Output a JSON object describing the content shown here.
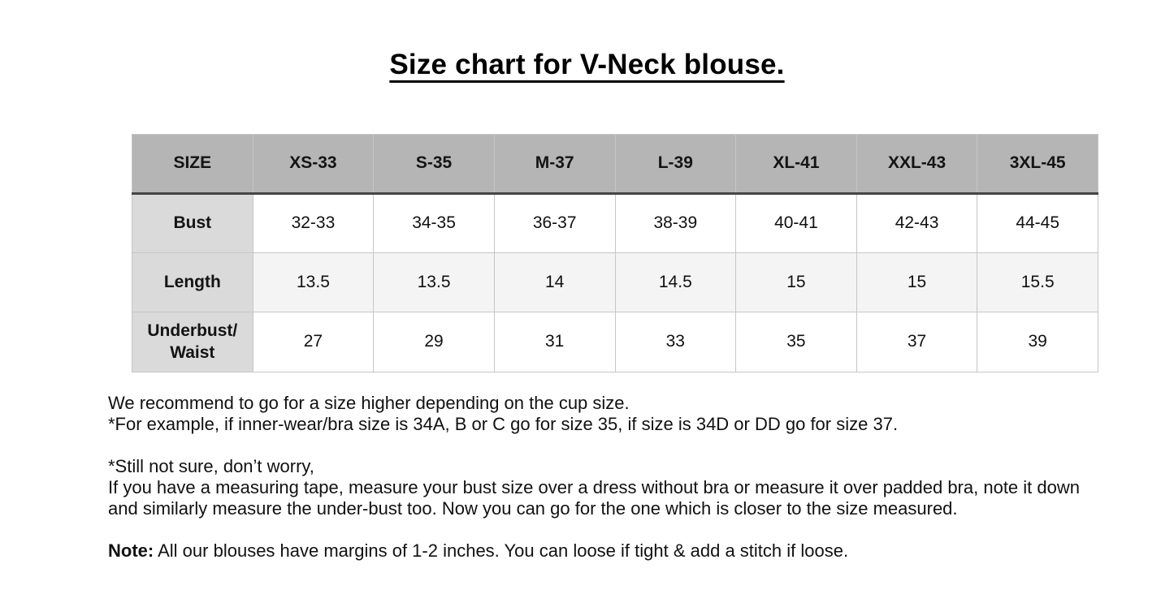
{
  "page": {
    "title": "Size chart for V-Neck blouse."
  },
  "size_table": {
    "columns": [
      "SIZE",
      "XS-33",
      "S-35",
      "M-37",
      "L-39",
      "XL-41",
      "XXL-43",
      "3XL-45"
    ],
    "rows": [
      {
        "label": "Bust",
        "values": [
          "32-33",
          "34-35",
          "36-37",
          "38-39",
          "40-41",
          "42-43",
          "44-45"
        ]
      },
      {
        "label": "Length",
        "values": [
          "13.5",
          "13.5",
          "14",
          "14.5",
          "15",
          "15",
          "15.5"
        ]
      },
      {
        "label": "Underbust/ Waist",
        "values": [
          "27",
          "29",
          "31",
          "33",
          "35",
          "37",
          "39"
        ]
      }
    ]
  },
  "notes": {
    "recommendation_line1": "We recommend to go for a size higher depending on the cup size.",
    "recommendation_line2": "*For example, if inner-wear/bra size is 34A, B or C go for size 35, if size is 34D or DD go for size 37.",
    "measure_line1": "*Still not sure, don’t worry,",
    "measure_line2": "If you have a measuring tape, measure your bust size over a dress without bra or measure it over padded bra, note it down and similarly measure the under-bust too. Now you can go for the one which is closer to the size measured.",
    "note_label": "Note:",
    "note_text": "All our blouses have margins of 1-2 inches. You can loose if tight & add a stitch if loose."
  },
  "colors": {
    "header_bg": "#b5b5b5",
    "label_column_bg": "#dadada",
    "alt_row_bg": "#f4f4f4",
    "grid_line": "#c6c6c6",
    "strong_line": "#454545",
    "text": "#111111"
  }
}
